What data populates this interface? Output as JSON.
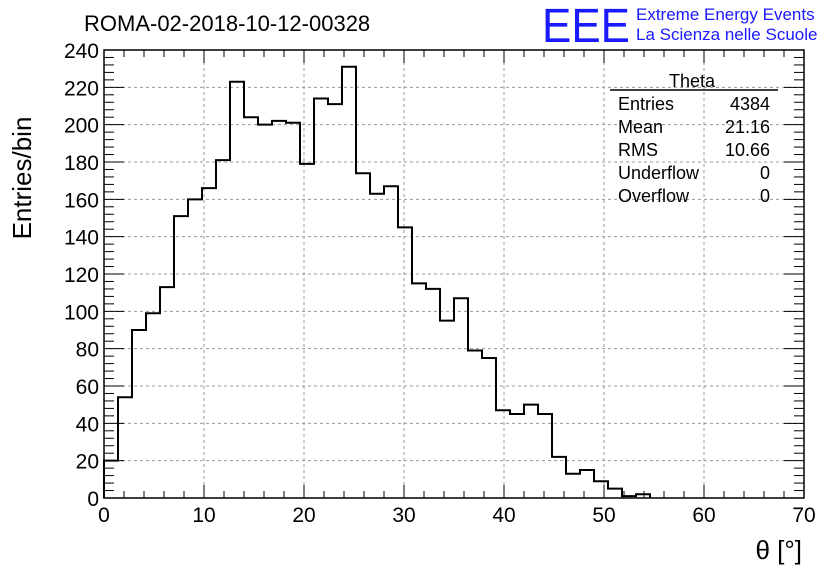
{
  "chart_data": {
    "type": "bar",
    "title": "ROMA-02-2018-10-12-00328",
    "xlabel": "θ [°]",
    "ylabel": "Entries/bin",
    "xlim": [
      0,
      70
    ],
    "ylim": [
      0,
      240
    ],
    "xticks": [
      "0",
      "10",
      "20",
      "30",
      "40",
      "50",
      "60",
      "70"
    ],
    "yticks": [
      "0",
      "20",
      "40",
      "60",
      "80",
      "100",
      "120",
      "140",
      "160",
      "180",
      "200",
      "220",
      "240"
    ],
    "grid": true,
    "bin_width": 1.4,
    "x": [
      0.7,
      2.1,
      3.5,
      4.9,
      6.3,
      7.7,
      9.1,
      10.5,
      11.9,
      13.3,
      14.7,
      16.1,
      17.5,
      18.9,
      20.3,
      21.7,
      23.1,
      24.5,
      25.9,
      27.3,
      28.7,
      30.1,
      31.5,
      32.9,
      34.3,
      35.7,
      37.1,
      38.5,
      39.9,
      41.3,
      42.7,
      44.1,
      45.5,
      46.9,
      48.3,
      49.7,
      51.1,
      52.5,
      53.9
    ],
    "values": [
      20,
      54,
      90,
      99,
      113,
      151,
      160,
      166,
      181,
      223,
      204,
      200,
      202,
      201,
      179,
      214,
      211,
      231,
      174,
      163,
      167,
      145,
      115,
      112,
      95,
      107,
      79,
      75,
      47,
      45,
      50,
      45,
      22,
      13,
      15,
      9,
      5,
      1,
      2
    ],
    "line_color": "#000000"
  },
  "logo": {
    "mark": "EEE",
    "line1": "Extreme Energy Events",
    "line2": "La Scienza nelle Scuole",
    "color": "#1a1aff"
  },
  "stats": {
    "name": "Theta",
    "rows": [
      {
        "label": "Entries",
        "value": "4384"
      },
      {
        "label": "Mean",
        "value": "21.16"
      },
      {
        "label": "RMS",
        "value": "10.66"
      },
      {
        "label": "Underflow",
        "value": "0"
      },
      {
        "label": "Overflow",
        "value": "0"
      }
    ]
  }
}
